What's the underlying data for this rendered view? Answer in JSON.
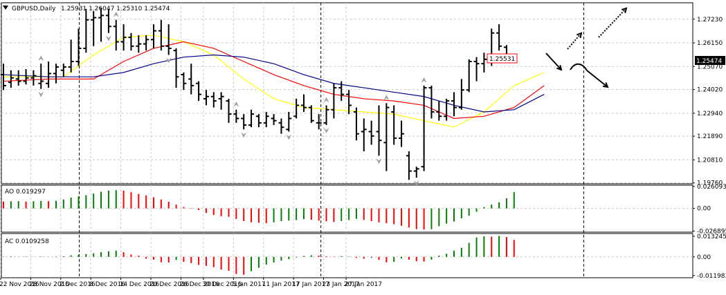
{
  "header": {
    "symbol": "GBPUSD,Daily",
    "ohlc": "1.25931 1.26047 1.25310 1.25474"
  },
  "price_tags": {
    "current": "1.25474",
    "marked": "1.25531"
  },
  "chart_data": [
    {
      "type": "ohlc",
      "title": "GBPUSD,Daily",
      "y_axis_ticks": [
        "1.27230",
        "1.26150",
        "1.25070",
        "1.24020",
        "1.22940",
        "1.21890",
        "1.20810",
        "1.19760"
      ],
      "ylim": [
        1.1972,
        1.2798
      ],
      "x_axis_ticks": [
        "22 Nov 2016",
        "28 Nov 2016",
        "2 Dec 2016",
        "8 Dec 2016",
        "14 Dec 2016",
        "20 Dec 2016",
        "26 Dec 2016",
        "30 Dec 2016",
        "5 Jan 2017",
        "11 Jan 2017",
        "17 Jan 2017",
        "23 Jan 2017",
        "27 Jan 2017"
      ],
      "x_axis_tick_bars": [
        0,
        4,
        8,
        12,
        16,
        20,
        24,
        27,
        31,
        35,
        39,
        43,
        46
      ],
      "bars": [
        {
          "o": 1.247,
          "h": 1.252,
          "l": 1.24,
          "c": 1.242
        },
        {
          "o": 1.2435,
          "h": 1.249,
          "l": 1.241,
          "c": 1.2455
        },
        {
          "o": 1.245,
          "h": 1.249,
          "l": 1.242,
          "c": 1.244
        },
        {
          "o": 1.244,
          "h": 1.2495,
          "l": 1.2425,
          "c": 1.2455
        },
        {
          "o": 1.2455,
          "h": 1.249,
          "l": 1.242,
          "c": 1.2465
        },
        {
          "o": 1.243,
          "h": 1.252,
          "l": 1.2405,
          "c": 1.244
        },
        {
          "o": 1.243,
          "h": 1.253,
          "l": 1.241,
          "c": 1.2475
        },
        {
          "o": 1.2475,
          "h": 1.252,
          "l": 1.243,
          "c": 1.2505
        },
        {
          "o": 1.249,
          "h": 1.252,
          "l": 1.246,
          "c": 1.2505
        },
        {
          "o": 1.2505,
          "h": 1.263,
          "l": 1.248,
          "c": 1.253
        },
        {
          "o": 1.253,
          "h": 1.268,
          "l": 1.251,
          "c": 1.259
        },
        {
          "o": 1.259,
          "h": 1.277,
          "l": 1.257,
          "c": 1.272
        },
        {
          "o": 1.272,
          "h": 1.276,
          "l": 1.26,
          "c": 1.273
        },
        {
          "o": 1.273,
          "h": 1.2775,
          "l": 1.262,
          "c": 1.274
        },
        {
          "o": 1.274,
          "h": 1.277,
          "l": 1.266,
          "c": 1.269
        },
        {
          "o": 1.269,
          "h": 1.272,
          "l": 1.258,
          "c": 1.262
        },
        {
          "o": 1.262,
          "h": 1.27,
          "l": 1.258,
          "c": 1.264
        },
        {
          "o": 1.264,
          "h": 1.266,
          "l": 1.258,
          "c": 1.26
        },
        {
          "o": 1.26,
          "h": 1.265,
          "l": 1.257,
          "c": 1.261
        },
        {
          "o": 1.261,
          "h": 1.265,
          "l": 1.258,
          "c": 1.263
        },
        {
          "o": 1.263,
          "h": 1.27,
          "l": 1.259,
          "c": 1.267
        },
        {
          "o": 1.267,
          "h": 1.272,
          "l": 1.258,
          "c": 1.26
        },
        {
          "o": 1.26,
          "h": 1.27,
          "l": 1.256,
          "c": 1.259
        },
        {
          "o": 1.258,
          "h": 1.259,
          "l": 1.241,
          "c": 1.246
        },
        {
          "o": 1.247,
          "h": 1.248,
          "l": 1.24,
          "c": 1.243
        },
        {
          "o": 1.245,
          "h": 1.252,
          "l": 1.238,
          "c": 1.242
        },
        {
          "o": 1.243,
          "h": 1.244,
          "l": 1.235,
          "c": 1.238
        },
        {
          "o": 1.236,
          "h": 1.24,
          "l": 1.233,
          "c": 1.237
        },
        {
          "o": 1.237,
          "h": 1.239,
          "l": 1.232,
          "c": 1.235
        },
        {
          "o": 1.236,
          "h": 1.239,
          "l": 1.231,
          "c": 1.237
        },
        {
          "o": 1.235,
          "h": 1.236,
          "l": 1.225,
          "c": 1.229
        },
        {
          "o": 1.229,
          "h": 1.231,
          "l": 1.225,
          "c": 1.227
        },
        {
          "o": 1.227,
          "h": 1.229,
          "l": 1.222,
          "c": 1.224
        },
        {
          "o": 1.224,
          "h": 1.231,
          "l": 1.223,
          "c": 1.229
        },
        {
          "o": 1.228,
          "h": 1.229,
          "l": 1.223,
          "c": 1.225
        },
        {
          "o": 1.225,
          "h": 1.23,
          "l": 1.223,
          "c": 1.228
        },
        {
          "o": 1.227,
          "h": 1.229,
          "l": 1.224,
          "c": 1.226
        },
        {
          "o": 1.225,
          "h": 1.227,
          "l": 1.22,
          "c": 1.223
        },
        {
          "o": 1.222,
          "h": 1.23,
          "l": 1.221,
          "c": 1.227
        },
        {
          "o": 1.228,
          "h": 1.236,
          "l": 1.227,
          "c": 1.233
        },
        {
          "o": 1.233,
          "h": 1.238,
          "l": 1.23,
          "c": 1.232
        },
        {
          "o": 1.232,
          "h": 1.233,
          "l": 1.225,
          "c": 1.226
        },
        {
          "o": 1.225,
          "h": 1.229,
          "l": 1.222,
          "c": 1.225
        },
        {
          "o": 1.225,
          "h": 1.233,
          "l": 1.224,
          "c": 1.231
        },
        {
          "o": 1.231,
          "h": 1.243,
          "l": 1.227,
          "c": 1.241
        },
        {
          "o": 1.241,
          "h": 1.244,
          "l": 1.235,
          "c": 1.238
        },
        {
          "o": 1.238,
          "h": 1.24,
          "l": 1.229,
          "c": 1.233
        },
        {
          "o": 1.23,
          "h": 1.232,
          "l": 1.217,
          "c": 1.22
        },
        {
          "o": 1.221,
          "h": 1.227,
          "l": 1.212,
          "c": 1.222
        },
        {
          "o": 1.221,
          "h": 1.226,
          "l": 1.215,
          "c": 1.219
        },
        {
          "o": 1.221,
          "h": 1.233,
          "l": 1.21,
          "c": 1.217
        },
        {
          "o": 1.216,
          "h": 1.234,
          "l": 1.203,
          "c": 1.232
        },
        {
          "o": 1.23,
          "h": 1.233,
          "l": 1.215,
          "c": 1.218
        },
        {
          "o": 1.218,
          "h": 1.226,
          "l": 1.214,
          "c": 1.22
        },
        {
          "o": 1.21,
          "h": 1.212,
          "l": 1.199,
          "c": 1.203
        },
        {
          "o": 1.203,
          "h": 1.205,
          "l": 1.2,
          "c": 1.204
        },
        {
          "o": 1.205,
          "h": 1.242,
          "l": 1.203,
          "c": 1.241
        },
        {
          "o": 1.241,
          "h": 1.242,
          "l": 1.227,
          "c": 1.23
        },
        {
          "o": 1.23,
          "h": 1.235,
          "l": 1.226,
          "c": 1.228
        },
        {
          "o": 1.228,
          "h": 1.236,
          "l": 1.226,
          "c": 1.235
        },
        {
          "o": 1.235,
          "h": 1.239,
          "l": 1.228,
          "c": 1.232
        },
        {
          "o": 1.232,
          "h": 1.245,
          "l": 1.231,
          "c": 1.24
        },
        {
          "o": 1.24,
          "h": 1.254,
          "l": 1.239,
          "c": 1.253
        },
        {
          "o": 1.253,
          "h": 1.255,
          "l": 1.244,
          "c": 1.252
        },
        {
          "o": 1.252,
          "h": 1.257,
          "l": 1.248,
          "c": 1.254
        },
        {
          "o": 1.254,
          "h": 1.268,
          "l": 1.251,
          "c": 1.266
        },
        {
          "o": 1.266,
          "h": 1.27,
          "l": 1.258,
          "c": 1.26
        },
        {
          "o": 1.2595,
          "h": 1.2605,
          "l": 1.2531,
          "c": 1.2547
        }
      ],
      "ma_lines": [
        {
          "color": "#ffff00",
          "points": [
            [
              0,
              1.246
            ],
            [
              8,
              1.246
            ],
            [
              12,
              1.256
            ],
            [
              16,
              1.264
            ],
            [
              20,
              1.265
            ],
            [
              24,
              1.262
            ],
            [
              28,
              1.256
            ],
            [
              32,
              1.245
            ],
            [
              36,
              1.236
            ],
            [
              40,
              1.232
            ],
            [
              44,
              1.231
            ],
            [
              48,
              1.23
            ],
            [
              52,
              1.229
            ],
            [
              56,
              1.226
            ],
            [
              60,
              1.223
            ],
            [
              64,
              1.23
            ],
            [
              68,
              1.242
            ],
            [
              72,
              1.248
            ]
          ]
        },
        {
          "color": "#ff0000",
          "points": [
            [
              0,
              1.244
            ],
            [
              6,
              1.245
            ],
            [
              12,
              1.245
            ],
            [
              16,
              1.253
            ],
            [
              20,
              1.259
            ],
            [
              24,
              1.262
            ],
            [
              28,
              1.259
            ],
            [
              32,
              1.253
            ],
            [
              36,
              1.247
            ],
            [
              40,
              1.242
            ],
            [
              44,
              1.238
            ],
            [
              48,
              1.236
            ],
            [
              52,
              1.235
            ],
            [
              56,
              1.233
            ],
            [
              60,
              1.227
            ],
            [
              64,
              1.228
            ],
            [
              68,
              1.232
            ],
            [
              72,
              1.242
            ]
          ]
        },
        {
          "color": "#00008b",
          "points": [
            [
              0,
              1.247
            ],
            [
              6,
              1.246
            ],
            [
              12,
              1.246
            ],
            [
              16,
              1.248
            ],
            [
              20,
              1.252
            ],
            [
              24,
              1.255
            ],
            [
              28,
              1.256
            ],
            [
              32,
              1.255
            ],
            [
              36,
              1.252
            ],
            [
              40,
              1.247
            ],
            [
              44,
              1.243
            ],
            [
              48,
              1.241
            ],
            [
              52,
              1.239
            ],
            [
              56,
              1.237
            ],
            [
              60,
              1.233
            ],
            [
              64,
              1.23
            ],
            [
              68,
              1.231
            ],
            [
              72,
              1.238
            ]
          ]
        }
      ],
      "fractals_up": [
        5,
        15,
        31,
        43,
        51,
        56
      ],
      "fractals_down": [
        5,
        14,
        22,
        32,
        38,
        43,
        50,
        55
      ]
    },
    {
      "type": "bar",
      "title": "AO 0.019297",
      "y_axis_ticks": [
        "0.026093",
        "0.00",
        "-0.026895"
      ],
      "ylim": [
        -0.0282,
        0.0276
      ],
      "values": [
        0.0081,
        0.0085,
        0.0086,
        0.0081,
        0.0085,
        0.0088,
        0.0086,
        0.0091,
        0.0106,
        0.0128,
        0.0142,
        0.0157,
        0.0176,
        0.0198,
        0.0212,
        0.0217,
        0.0212,
        0.0192,
        0.0172,
        0.0154,
        0.0132,
        0.0105,
        0.008,
        0.0045,
        0.0015,
        0.0005,
        -0.002,
        -0.0055,
        -0.0078,
        -0.0093,
        -0.0099,
        -0.0126,
        -0.0152,
        -0.0165,
        -0.017,
        -0.0176,
        -0.0166,
        -0.0152,
        -0.0145,
        -0.0138,
        -0.0127,
        -0.0135,
        -0.0146,
        -0.0154,
        -0.0161,
        -0.015,
        -0.0138,
        -0.0124,
        -0.0137,
        -0.0152,
        -0.0166,
        -0.0176,
        -0.0188,
        -0.0206,
        -0.0228,
        -0.0246,
        -0.0252,
        -0.0247,
        -0.0212,
        -0.0181,
        -0.0156,
        -0.0118,
        -0.0088,
        -0.004,
        0.0016,
        0.0045,
        0.0072,
        0.012,
        0.0193
      ],
      "colors": [
        "#ff0000",
        "#008000",
        "#008000",
        "#ff0000",
        "#008000",
        "#008000",
        "#ff0000",
        "#008000",
        "#008000",
        "#008000",
        "#008000",
        "#008000",
        "#008000",
        "#008000",
        "#008000",
        "#008000",
        "#ff0000",
        "#ff0000",
        "#ff0000",
        "#ff0000",
        "#ff0000",
        "#ff0000",
        "#ff0000",
        "#ff0000",
        "#ff0000",
        "#ff0000",
        "#ff0000",
        "#ff0000",
        "#ff0000",
        "#ff0000",
        "#ff0000",
        "#ff0000",
        "#ff0000",
        "#ff0000",
        "#ff0000",
        "#ff0000",
        "#008000",
        "#008000",
        "#008000",
        "#008000",
        "#008000",
        "#ff0000",
        "#ff0000",
        "#ff0000",
        "#ff0000",
        "#008000",
        "#008000",
        "#008000",
        "#ff0000",
        "#ff0000",
        "#ff0000",
        "#ff0000",
        "#ff0000",
        "#ff0000",
        "#ff0000",
        "#ff0000",
        "#ff0000",
        "#008000",
        "#008000",
        "#008000",
        "#008000",
        "#008000",
        "#008000",
        "#008000",
        "#008000",
        "#008000",
        "#008000",
        "#008000",
        "#008000"
      ]
    },
    {
      "type": "bar",
      "title": "AC 0.0109258",
      "y_axis_ticks": [
        "0.013245",
        "0.00",
        "-0.011983"
      ],
      "ylim": [
        -0.0134,
        0.015
      ],
      "values": [
        0.0002,
        0.0003,
        0.0001,
        0.0002,
        0.0001,
        0.0002,
        0.0001,
        0.0002,
        0.0004,
        0.001,
        0.0013,
        0.0018,
        0.0023,
        0.003,
        0.0036,
        0.004,
        0.003,
        0.0015,
        0.0008,
        -0.0012,
        -0.0018,
        -0.0035,
        -0.0036,
        -0.002,
        -0.0032,
        -0.004,
        -0.0052,
        -0.0058,
        -0.0066,
        -0.0082,
        -0.009,
        -0.011,
        -0.0115,
        -0.0092,
        -0.007,
        -0.005,
        -0.0036,
        -0.0024,
        -0.0014,
        -0.0004,
        0.0006,
        0.001,
        0.0008,
        0.0004,
        0.0002,
        0.0005,
        0.0002,
        -0.0006,
        -0.0012,
        -0.0006,
        -0.002,
        -0.0035,
        -0.0032,
        -0.001,
        -0.0018,
        -0.0028,
        -0.003,
        -0.0018,
        0.0008,
        0.002,
        0.004,
        0.0058,
        0.009,
        0.0125,
        0.0132,
        0.013,
        0.0134,
        0.0128,
        0.0109
      ],
      "colors": [
        "#008000",
        "#008000",
        "#ff0000",
        "#008000",
        "#ff0000",
        "#008000",
        "#ff0000",
        "#008000",
        "#008000",
        "#008000",
        "#008000",
        "#008000",
        "#008000",
        "#008000",
        "#008000",
        "#008000",
        "#ff0000",
        "#ff0000",
        "#ff0000",
        "#ff0000",
        "#ff0000",
        "#ff0000",
        "#ff0000",
        "#008000",
        "#ff0000",
        "#ff0000",
        "#ff0000",
        "#ff0000",
        "#ff0000",
        "#ff0000",
        "#ff0000",
        "#ff0000",
        "#ff0000",
        "#008000",
        "#008000",
        "#008000",
        "#008000",
        "#008000",
        "#008000",
        "#008000",
        "#008000",
        "#008000",
        "#ff0000",
        "#ff0000",
        "#ff0000",
        "#008000",
        "#ff0000",
        "#ff0000",
        "#ff0000",
        "#008000",
        "#ff0000",
        "#ff0000",
        "#008000",
        "#008000",
        "#ff0000",
        "#ff0000",
        "#ff0000",
        "#008000",
        "#008000",
        "#008000",
        "#008000",
        "#008000",
        "#008000",
        "#008000",
        "#008000",
        "#ff0000",
        "#008000",
        "#ff0000",
        "#ff0000"
      ]
    }
  ]
}
